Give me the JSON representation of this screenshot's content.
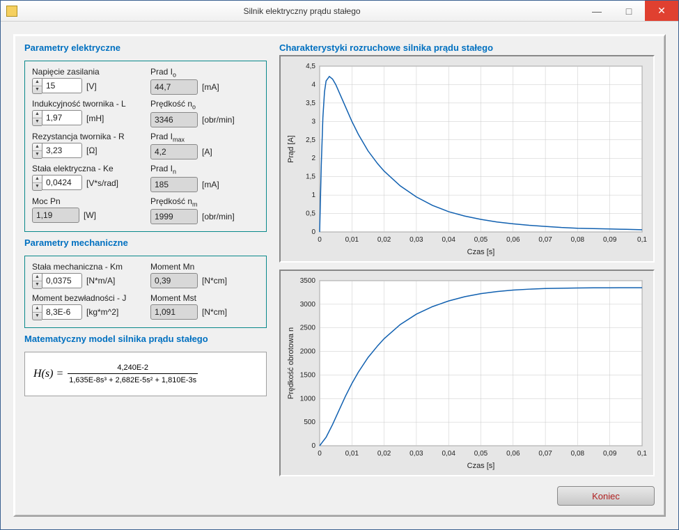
{
  "window": {
    "title": "Silnik elektryczny prądu stałego",
    "minimize": "—",
    "maximize": "□",
    "close": "✕"
  },
  "sections": {
    "elec_title": "Parametry elektryczne",
    "mech_title": "Parametry mechaniczne",
    "math_title": "Matematyczny model silnika prądu stałego",
    "chart_title": "Charakterystyki rozruchowe silnika prądu stałego"
  },
  "elec": {
    "nap_label": "Napięcie zasilania",
    "nap_val": "15",
    "nap_unit": "[V]",
    "ind_label": "Indukcyjność twornika - L",
    "ind_val": "1,97",
    "ind_unit": "[mH]",
    "rez_label": "Rezystancja twornika - R",
    "rez_val": "3,23",
    "rez_unit": "[Ω]",
    "ke_label": "Stała elektryczna - Ke",
    "ke_val": "0,0424",
    "ke_unit": "[V*s/rad]",
    "moc_label": "Moc Pn",
    "moc_val": "1,19",
    "moc_unit": "[W]",
    "io_label": "Prad I",
    "io_sub": "o",
    "io_val": "44,7",
    "io_unit": "[mA]",
    "no_label": "Prędkość n",
    "no_sub": "o",
    "no_val": "3346",
    "no_unit": "[obr/min]",
    "imax_label": "Prad I",
    "imax_sub": "max",
    "imax_val": "4,2",
    "imax_unit": "[A]",
    "in_label": "Prad I",
    "in_sub": "n",
    "in_val": "185",
    "in_unit": "[mA]",
    "nm_label": "Prędkość n",
    "nm_sub": "m",
    "nm_val": "1999",
    "nm_unit": "[obr/min]"
  },
  "mech": {
    "km_label": "Stała mechaniczna - Km",
    "km_val": "0,0375",
    "km_unit": "[N*m/A]",
    "j_label": "Moment bezwładności - J",
    "j_val": "8,3E-6",
    "j_unit": "[kg*m^2]",
    "mn_label": "Moment Mn",
    "mn_val": "0,39",
    "mn_unit": "[N*cm]",
    "mst_label": "Moment Mst",
    "mst_val": "1,091",
    "mst_unit": "[N*cm]"
  },
  "math": {
    "lhs": "H(s) =",
    "numerator": "4,240E-2",
    "denominator": "1,635E-8s³ + 2,682E-5s² + 1,810E-3s"
  },
  "chart1": {
    "ylabel": "Prąd [A]",
    "xlabel": "Czas [s]",
    "xlim": [
      0,
      0.1
    ],
    "ylim": [
      0,
      4.5
    ],
    "xticks": [
      0,
      0.01,
      0.02,
      0.03,
      0.04,
      0.05,
      0.06,
      0.07,
      0.08,
      0.09,
      0.1
    ],
    "xticklabels": [
      "0",
      "0,01",
      "0,02",
      "0,03",
      "0,04",
      "0,05",
      "0,06",
      "0,07",
      "0,08",
      "0,09",
      "0,1"
    ],
    "yticks": [
      0,
      0.5,
      1,
      1.5,
      2,
      2.5,
      3,
      3.5,
      4,
      4.5
    ],
    "yticklabels": [
      "0",
      "0,5",
      "1",
      "1,5",
      "2",
      "2,5",
      "3",
      "3,5",
      "4",
      "4,5"
    ],
    "line_color": "#1060b0",
    "grid_color": "#c8c8c8",
    "bg_color": "#ffffff",
    "data": [
      [
        0,
        0
      ],
      [
        0.0005,
        1.8
      ],
      [
        0.001,
        3.1
      ],
      [
        0.0015,
        3.8
      ],
      [
        0.002,
        4.1
      ],
      [
        0.003,
        4.22
      ],
      [
        0.004,
        4.15
      ],
      [
        0.005,
        4.0
      ],
      [
        0.006,
        3.8
      ],
      [
        0.008,
        3.4
      ],
      [
        0.01,
        3.0
      ],
      [
        0.012,
        2.65
      ],
      [
        0.015,
        2.2
      ],
      [
        0.018,
        1.85
      ],
      [
        0.02,
        1.65
      ],
      [
        0.025,
        1.25
      ],
      [
        0.03,
        0.95
      ],
      [
        0.035,
        0.72
      ],
      [
        0.04,
        0.55
      ],
      [
        0.045,
        0.43
      ],
      [
        0.05,
        0.34
      ],
      [
        0.055,
        0.27
      ],
      [
        0.06,
        0.22
      ],
      [
        0.065,
        0.18
      ],
      [
        0.07,
        0.15
      ],
      [
        0.075,
        0.12
      ],
      [
        0.08,
        0.1
      ],
      [
        0.085,
        0.09
      ],
      [
        0.09,
        0.08
      ],
      [
        0.095,
        0.07
      ],
      [
        0.1,
        0.06
      ]
    ]
  },
  "chart2": {
    "ylabel": "Prędkość obrotowa n",
    "xlabel": "Czas [s]",
    "xlim": [
      0,
      0.1
    ],
    "ylim": [
      0,
      3500
    ],
    "xticks": [
      0,
      0.01,
      0.02,
      0.03,
      0.04,
      0.05,
      0.06,
      0.07,
      0.08,
      0.09,
      0.1
    ],
    "xticklabels": [
      "0",
      "0,01",
      "0,02",
      "0,03",
      "0,04",
      "0,05",
      "0,06",
      "0,07",
      "0,08",
      "0,09",
      "0,1"
    ],
    "yticks": [
      0,
      500,
      1000,
      1500,
      2000,
      2500,
      3000,
      3500
    ],
    "yticklabels": [
      "0",
      "500",
      "1000",
      "1500",
      "2000",
      "2500",
      "3000",
      "3500"
    ],
    "line_color": "#1060b0",
    "grid_color": "#c8c8c8",
    "bg_color": "#ffffff",
    "data": [
      [
        0,
        0
      ],
      [
        0.002,
        180
      ],
      [
        0.004,
        450
      ],
      [
        0.006,
        750
      ],
      [
        0.008,
        1050
      ],
      [
        0.01,
        1320
      ],
      [
        0.012,
        1560
      ],
      [
        0.015,
        1870
      ],
      [
        0.018,
        2120
      ],
      [
        0.02,
        2270
      ],
      [
        0.025,
        2570
      ],
      [
        0.03,
        2790
      ],
      [
        0.035,
        2950
      ],
      [
        0.04,
        3070
      ],
      [
        0.045,
        3160
      ],
      [
        0.05,
        3225
      ],
      [
        0.055,
        3270
      ],
      [
        0.06,
        3300
      ],
      [
        0.065,
        3320
      ],
      [
        0.07,
        3333
      ],
      [
        0.075,
        3340
      ],
      [
        0.08,
        3345
      ],
      [
        0.085,
        3348
      ],
      [
        0.09,
        3349
      ],
      [
        0.095,
        3350
      ],
      [
        0.1,
        3350
      ]
    ]
  },
  "footer": {
    "koniec": "Koniec"
  }
}
